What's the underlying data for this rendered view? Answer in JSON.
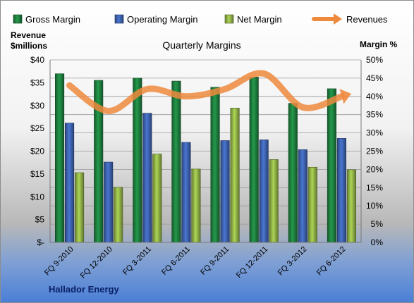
{
  "chart_data": {
    "type": "bar",
    "title": "Quarterly Margins",
    "ylabel_left": "Revenue $millions",
    "ylabel_right": "Margin %",
    "left_axis": {
      "min": 0,
      "max": 40,
      "step": 5,
      "ticks": [
        "$-",
        "$5",
        "$10",
        "$15",
        "$20",
        "$25",
        "$30",
        "$35",
        "$40"
      ]
    },
    "right_axis": {
      "min": 0,
      "max": 50,
      "step": 5,
      "ticks": [
        "0%",
        "5%",
        "10%",
        "15%",
        "20%",
        "25%",
        "30%",
        "35%",
        "40%",
        "45%",
        "50%"
      ]
    },
    "categories": [
      "FQ 9-2010",
      "FQ 12-2010",
      "FQ 3-2011",
      "FQ 6-2011",
      "FQ 9-2011",
      "FQ 12-2011",
      "FQ 3-2012",
      "FQ 6-2012"
    ],
    "series": [
      {
        "name": "Gross Margin",
        "kind": "bar",
        "axis": "right",
        "color": "#1d7a3c",
        "values": [
          46.2,
          44.4,
          45.0,
          44.2,
          42.5,
          45.3,
          38.1,
          42.1
        ]
      },
      {
        "name": "Operating Margin",
        "kind": "bar",
        "axis": "right",
        "color": "#3b5ea8",
        "values": [
          32.7,
          22.0,
          35.4,
          27.4,
          27.9,
          28.1,
          25.4,
          28.5
        ]
      },
      {
        "name": "Net Margin",
        "kind": "bar",
        "axis": "right",
        "color": "#8aaa44",
        "values": [
          19.1,
          15.1,
          24.2,
          20.1,
          36.8,
          22.7,
          20.6,
          19.9
        ]
      },
      {
        "name": "Revenues",
        "kind": "line",
        "axis": "left",
        "color": "#ef8a3d",
        "values": [
          34.4,
          28.8,
          33.6,
          32.0,
          33.6,
          37.0,
          29.6,
          32.0
        ]
      }
    ],
    "legend_position": "top",
    "grid": true
  },
  "footer": {
    "company": "Hallador Energy"
  }
}
